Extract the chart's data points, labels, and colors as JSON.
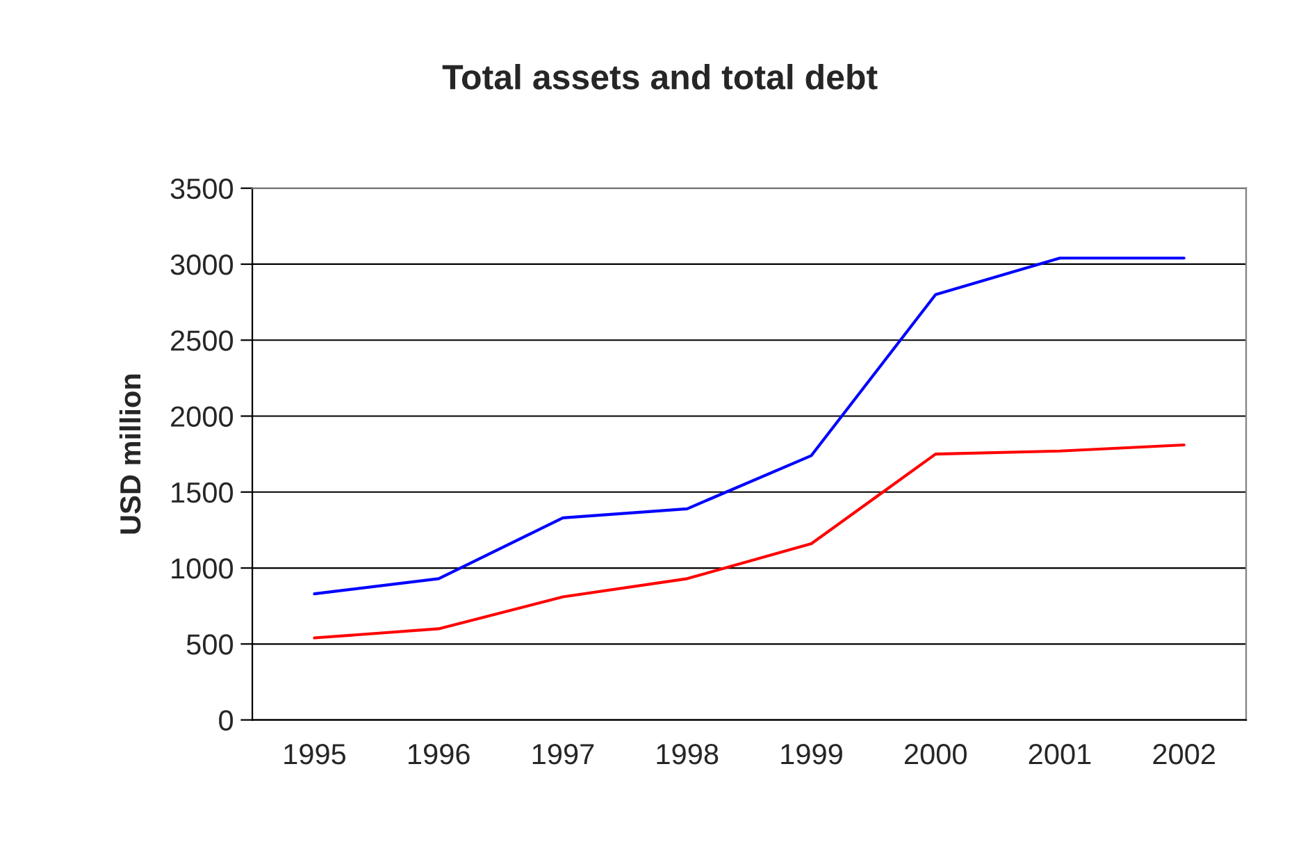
{
  "chart_data": {
    "type": "line",
    "title": "Total assets and total debt",
    "ylabel": "USD million",
    "categories": [
      "1995",
      "1996",
      "1997",
      "1998",
      "1999",
      "2000",
      "2001",
      "2002"
    ],
    "series": [
      {
        "color": "#0000ff",
        "values": [
          830,
          930,
          1330,
          1390,
          1740,
          2800,
          3040,
          3040
        ]
      },
      {
        "color": "#ff0000",
        "values": [
          540,
          600,
          810,
          930,
          1160,
          1750,
          1770,
          1810
        ]
      }
    ],
    "ylim": [
      0,
      3500
    ],
    "yticks": [
      0,
      500,
      1000,
      1500,
      2000,
      2500,
      3000,
      3500
    ],
    "grid": "y"
  }
}
